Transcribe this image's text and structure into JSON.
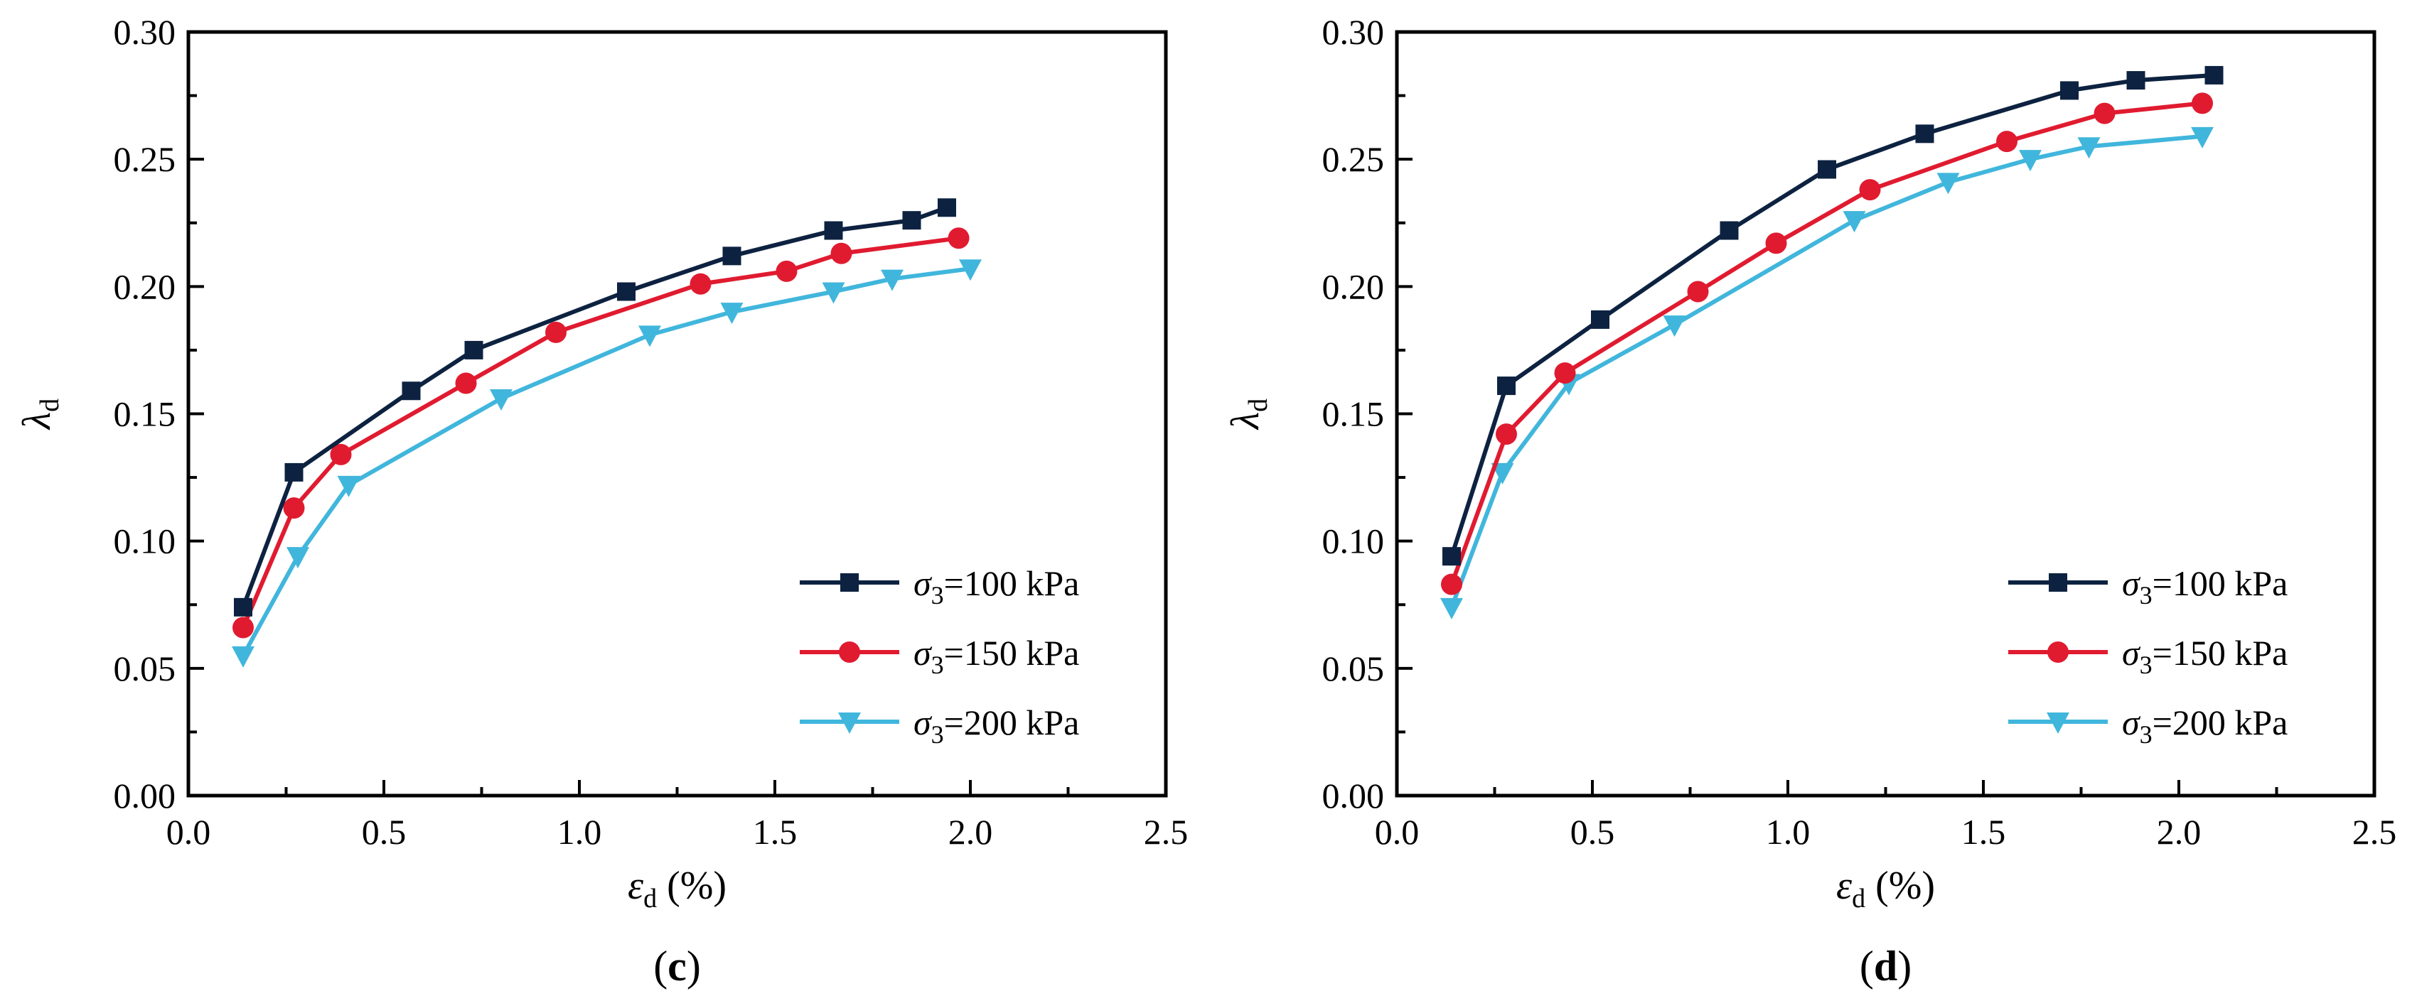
{
  "chart_data": [
    {
      "type": "line",
      "panel_label": "c",
      "xlabel": {
        "symbol": "ε",
        "sub": "d",
        "unit": " (%)"
      },
      "ylabel": {
        "symbol": "λ",
        "sub": "d"
      },
      "xlim": [
        0.0,
        2.5
      ],
      "ylim": [
        0.0,
        0.3
      ],
      "xticks": [
        "0.0",
        "0.5",
        "1.0",
        "1.5",
        "2.0",
        "2.5"
      ],
      "yticks": [
        "0.00",
        "0.05",
        "0.10",
        "0.15",
        "0.20",
        "0.25",
        "0.30"
      ],
      "grid": false,
      "legend_position": "bottom-right",
      "series": [
        {
          "legend": {
            "sigma": "σ",
            "sub": "3",
            "value": "=100 kPa"
          },
          "color": "#0d2240",
          "marker": "square",
          "x": [
            0.14,
            0.27,
            0.57,
            0.73,
            1.12,
            1.39,
            1.65,
            1.85,
            1.94
          ],
          "y": [
            0.074,
            0.127,
            0.159,
            0.175,
            0.198,
            0.212,
            0.222,
            0.226,
            0.231
          ]
        },
        {
          "legend": {
            "sigma": "σ",
            "sub": "3",
            "value": "=150 kPa"
          },
          "color": "#e01b30",
          "marker": "circle",
          "x": [
            0.14,
            0.27,
            0.39,
            0.71,
            0.94,
            1.31,
            1.53,
            1.67,
            1.97
          ],
          "y": [
            0.066,
            0.113,
            0.134,
            0.162,
            0.182,
            0.201,
            0.206,
            0.213,
            0.219
          ]
        },
        {
          "legend": {
            "sigma": "σ",
            "sub": "3",
            "value": "=200 kPa"
          },
          "color": "#41b6dc",
          "marker": "triangle-down",
          "x": [
            0.14,
            0.28,
            0.41,
            0.8,
            1.18,
            1.39,
            1.65,
            1.8,
            2.0
          ],
          "y": [
            0.055,
            0.094,
            0.122,
            0.156,
            0.181,
            0.19,
            0.198,
            0.203,
            0.207
          ]
        }
      ]
    },
    {
      "type": "line",
      "panel_label": "d",
      "xlabel": {
        "symbol": "ε",
        "sub": "d",
        "unit": " (%)"
      },
      "ylabel": {
        "symbol": "λ",
        "sub": "d"
      },
      "xlim": [
        0.0,
        2.5
      ],
      "ylim": [
        0.0,
        0.3
      ],
      "xticks": [
        "0.0",
        "0.5",
        "1.0",
        "1.5",
        "2.0",
        "2.5"
      ],
      "yticks": [
        "0.00",
        "0.05",
        "0.10",
        "0.15",
        "0.20",
        "0.25",
        "0.30"
      ],
      "grid": false,
      "legend_position": "bottom-right",
      "series": [
        {
          "legend": {
            "sigma": "σ",
            "sub": "3",
            "value": "=100 kPa"
          },
          "color": "#0d2240",
          "marker": "square",
          "x": [
            0.14,
            0.28,
            0.52,
            0.85,
            1.1,
            1.35,
            1.72,
            1.89,
            2.09
          ],
          "y": [
            0.094,
            0.161,
            0.187,
            0.222,
            0.246,
            0.26,
            0.277,
            0.281,
            0.283
          ]
        },
        {
          "legend": {
            "sigma": "σ",
            "sub": "3",
            "value": "=150 kPa"
          },
          "color": "#e01b30",
          "marker": "circle",
          "x": [
            0.14,
            0.28,
            0.43,
            0.77,
            0.97,
            1.21,
            1.56,
            1.81,
            2.06
          ],
          "y": [
            0.083,
            0.142,
            0.166,
            0.198,
            0.217,
            0.238,
            0.257,
            0.268,
            0.272
          ]
        },
        {
          "legend": {
            "sigma": "σ",
            "sub": "3",
            "value": "=200 kPa"
          },
          "color": "#41b6dc",
          "marker": "triangle-down",
          "x": [
            0.14,
            0.27,
            0.44,
            0.71,
            1.17,
            1.41,
            1.62,
            1.77,
            2.06
          ],
          "y": [
            0.074,
            0.127,
            0.162,
            0.185,
            0.226,
            0.241,
            0.25,
            0.255,
            0.259
          ]
        }
      ]
    }
  ]
}
